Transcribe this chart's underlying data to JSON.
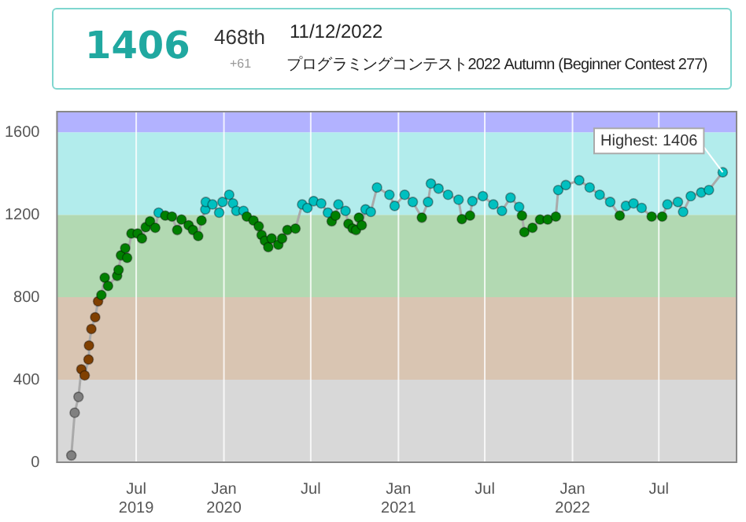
{
  "chart_data": {
    "type": "line",
    "title": "1406",
    "subtitle": "プログラミングコンテスト2022 Autumn (Beginner Contest 277)",
    "annotations": [
      "468th",
      "+61",
      "11/12/2022",
      {
        "text": "Highest: 1406",
        "x": "2022-11-12",
        "y": 1406
      }
    ],
    "x": [
      "2019-02-15",
      "2019-02-22",
      "2019-03-02",
      "2019-03-08",
      "2019-03-15",
      "2019-03-23",
      "2019-03-24",
      "2019-03-29",
      "2019-04-06",
      "2019-04-12",
      "2019-04-19",
      "2019-04-26",
      "2019-05-03",
      "2019-05-22",
      "2019-05-25",
      "2019-05-30",
      "2019-06-08",
      "2019-06-12",
      "2019-06-21",
      "2019-07-04",
      "2019-07-13",
      "2019-07-21",
      "2019-07-30",
      "2019-08-10",
      "2019-08-17",
      "2019-08-31",
      "2019-09-14",
      "2019-09-25",
      "2019-10-04",
      "2019-10-19",
      "2019-10-28",
      "2019-11-08",
      "2019-11-15",
      "2019-11-23",
      "2019-11-24",
      "2019-12-08",
      "2019-12-22",
      "2019-12-29",
      "2020-01-12",
      "2020-01-20",
      "2020-01-27",
      "2020-02-11",
      "2020-02-18",
      "2020-03-03",
      "2020-03-14",
      "2020-03-20",
      "2020-03-27",
      "2020-04-03",
      "2020-04-10",
      "2020-04-24",
      "2020-05-02",
      "2020-05-13",
      "2020-05-30",
      "2020-06-13",
      "2020-06-24",
      "2020-07-07",
      "2020-07-23",
      "2020-08-06",
      "2020-08-14",
      "2020-08-22",
      "2020-08-28",
      "2020-09-12",
      "2020-09-18",
      "2020-09-27",
      "2020-10-04",
      "2020-10-10",
      "2020-10-16",
      "2020-10-24",
      "2020-11-04",
      "2020-11-17",
      "2020-12-13",
      "2020-12-24",
      "2021-01-14",
      "2021-01-31",
      "2021-02-19",
      "2021-03-04",
      "2021-03-10",
      "2021-03-26",
      "2021-04-15",
      "2021-05-07",
      "2021-05-14",
      "2021-05-31",
      "2021-06-05",
      "2021-06-27",
      "2021-07-19",
      "2021-08-06",
      "2021-08-24",
      "2021-09-11",
      "2021-09-17",
      "2021-09-22",
      "2021-10-09",
      "2021-10-25",
      "2021-11-10",
      "2021-11-27",
      "2021-12-02",
      "2021-12-18",
      "2022-01-15",
      "2022-02-06",
      "2022-02-27",
      "2022-03-21",
      "2022-04-10",
      "2022-04-23",
      "2022-05-09",
      "2022-05-26",
      "2022-06-16",
      "2022-07-08",
      "2022-07-19",
      "2022-08-10",
      "2022-08-21",
      "2022-09-06",
      "2022-09-28",
      "2022-10-14",
      "2022-11-12"
    ],
    "series": [
      {
        "color": "#aaaaaa",
        "values": [
          33,
          240,
          317,
          451,
          421,
          498,
          566,
          646,
          703,
          780,
          811,
          895,
          855,
          904,
          933,
          1003,
          1038,
          991,
          1109,
          1109,
          1085,
          1140,
          1168,
          1137,
          1210,
          1196,
          1191,
          1126,
          1177,
          1149,
          1126,
          1097,
          1172,
          1226,
          1262,
          1250,
          1210,
          1262,
          1297,
          1255,
          1219,
          1219,
          1191,
          1172,
          1144,
          1102,
          1074,
          1043,
          1085,
          1055,
          1085,
          1126,
          1133,
          1250,
          1233,
          1266,
          1255,
          1210,
          1168,
          1196,
          1250,
          1219,
          1156,
          1133,
          1126,
          1186,
          1149,
          1226,
          1214,
          1332,
          1297,
          1243,
          1297,
          1262,
          1186,
          1262,
          1351,
          1327,
          1297,
          1273,
          1179,
          1196,
          1266,
          1290,
          1250,
          1219,
          1283,
          1238,
          1196,
          1116,
          1137,
          1177,
          1177,
          1191,
          1320,
          1344,
          1367,
          1332,
          1297,
          1262,
          1196,
          1243,
          1255,
          1233,
          1191,
          1191,
          1250,
          1262,
          1214,
          1290,
          1308,
          1320,
          1406
        ],
        "colors": [
          "#808080",
          "#808080",
          "#808080",
          "#804000",
          "#804000",
          "#804000",
          "#804000",
          "#804000",
          "#804000",
          "#804000",
          "#008000",
          "#008000",
          "#008000",
          "#008000",
          "#008000",
          "#008000",
          "#008000",
          "#008000",
          "#008000",
          "#008000",
          "#008000",
          "#008000",
          "#008000",
          "#008000",
          "#00c0c0",
          "#008000",
          "#008000",
          "#008000",
          "#008000",
          "#008000",
          "#008000",
          "#008000",
          "#008000",
          "#00c0c0",
          "#00c0c0",
          "#00c0c0",
          "#00c0c0",
          "#00c0c0",
          "#00c0c0",
          "#00c0c0",
          "#00c0c0",
          "#00c0c0",
          "#008000",
          "#008000",
          "#008000",
          "#008000",
          "#008000",
          "#008000",
          "#008000",
          "#008000",
          "#008000",
          "#008000",
          "#008000",
          "#00c0c0",
          "#00c0c0",
          "#00c0c0",
          "#00c0c0",
          "#00c0c0",
          "#008000",
          "#008000",
          "#00c0c0",
          "#00c0c0",
          "#008000",
          "#008000",
          "#008000",
          "#008000",
          "#008000",
          "#00c0c0",
          "#00c0c0",
          "#00c0c0",
          "#00c0c0",
          "#00c0c0",
          "#00c0c0",
          "#00c0c0",
          "#008000",
          "#00c0c0",
          "#00c0c0",
          "#00c0c0",
          "#00c0c0",
          "#00c0c0",
          "#008000",
          "#008000",
          "#00c0c0",
          "#00c0c0",
          "#00c0c0",
          "#00c0c0",
          "#00c0c0",
          "#00c0c0",
          "#008000",
          "#008000",
          "#008000",
          "#008000",
          "#008000",
          "#008000",
          "#00c0c0",
          "#00c0c0",
          "#00c0c0",
          "#00c0c0",
          "#00c0c0",
          "#00c0c0",
          "#008000",
          "#00c0c0",
          "#00c0c0",
          "#00c0c0",
          "#008000",
          "#008000",
          "#00c0c0",
          "#00c0c0",
          "#00c0c0",
          "#00c0c0",
          "#00c0c0",
          "#00c0c0",
          "#00c0c0"
        ]
      }
    ],
    "xlim": [
      "2019-01-16",
      "2022-12-11"
    ],
    "xticks": [
      {
        "value": "2019-07-01",
        "label": "Jul\n2019"
      },
      {
        "value": "2020-01-01",
        "label": "Jan\n2020"
      },
      {
        "value": "2020-07-01",
        "label": "Jul"
      },
      {
        "value": "2021-01-01",
        "label": "Jan\n2021"
      },
      {
        "value": "2021-07-01",
        "label": "Jul"
      },
      {
        "value": "2022-01-01",
        "label": "Jan\n2022"
      },
      {
        "value": "2022-07-01",
        "label": "Jul"
      }
    ],
    "ylim": [
      0,
      1700
    ],
    "yticks": [
      0,
      400,
      800,
      1200,
      1600
    ],
    "bands": [
      {
        "axis": "y",
        "from": 0,
        "to": 400,
        "color": "#d8d8d8"
      },
      {
        "axis": "y",
        "from": 400,
        "to": 800,
        "color": "#d9c5b2"
      },
      {
        "axis": "y",
        "from": 800,
        "to": 1200,
        "color": "#b2d9b2"
      },
      {
        "axis": "y",
        "from": 1200,
        "to": 1600,
        "color": "#b2ecec"
      },
      {
        "axis": "y",
        "from": 1600,
        "to": 1700,
        "color": "#b2b2ff"
      }
    ],
    "grid": "x",
    "legend": false,
    "marker": "circle",
    "line_style": "solid"
  }
}
